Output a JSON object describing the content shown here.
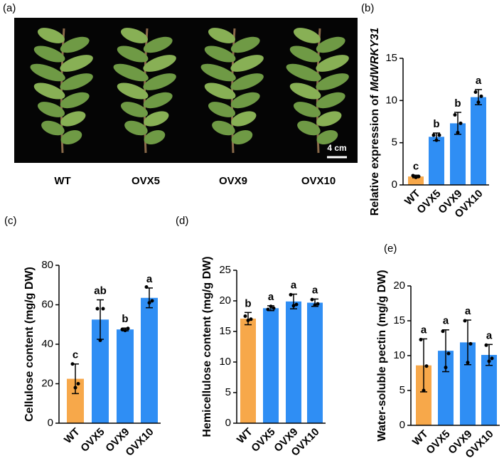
{
  "photo": {
    "panel": "(a)",
    "labels": [
      "WT",
      "OVX5",
      "OVX9",
      "OVX10"
    ],
    "scale_bar": "4 cm"
  },
  "chart_data": [
    {
      "type": "bar",
      "panel": "(b)",
      "ylabel": "Relative expression of",
      "ylabel_gene": "MdWRKY31",
      "categories": [
        "WT",
        "OVX5",
        "OVX9",
        "OVX10"
      ],
      "values": [
        1.0,
        5.7,
        7.3,
        10.4
      ],
      "errors": [
        0.15,
        0.45,
        1.3,
        0.9
      ],
      "points": [
        [
          1.1,
          0.9,
          1.0
        ],
        [
          5.9,
          5.3,
          5.9
        ],
        [
          8.3,
          6.2,
          7.3
        ],
        [
          11.0,
          9.8,
          10.5
        ]
      ],
      "letters": [
        "c",
        "b",
        "b",
        "a"
      ],
      "colors": [
        "#f7a84a",
        "#2f8ef4",
        "#2f8ef4",
        "#2f8ef4"
      ],
      "ylim": [
        0,
        15
      ],
      "yticks": [
        0,
        5,
        10,
        15
      ]
    },
    {
      "type": "bar",
      "panel": "(c)",
      "ylabel": "Cellulose content (mg/g DW)",
      "categories": [
        "WT",
        "OVX5",
        "OVX9",
        "OVX10"
      ],
      "values": [
        22.5,
        52.5,
        47.5,
        63.5
      ],
      "errors": [
        7.5,
        10,
        0.7,
        5
      ],
      "points": [
        [
          30,
          18,
          20
        ],
        [
          58,
          42,
          58
        ],
        [
          47.5,
          47,
          48
        ],
        [
          69,
          61,
          62
        ]
      ],
      "letters": [
        "c",
        "ab",
        "b",
        "a"
      ],
      "colors": [
        "#f7a84a",
        "#2f8ef4",
        "#2f8ef4",
        "#2f8ef4"
      ],
      "ylim": [
        0,
        80
      ],
      "yticks": [
        0,
        20,
        40,
        60,
        80
      ]
    },
    {
      "type": "bar",
      "panel": "(d)",
      "ylabel": "Hemicellulose content (mg/g DW)",
      "categories": [
        "WT",
        "OVX5",
        "OVX9",
        "OVX10"
      ],
      "values": [
        17.1,
        18.8,
        19.9,
        19.7
      ],
      "errors": [
        1.0,
        0.4,
        1.2,
        0.6
      ],
      "points": [
        [
          17.5,
          16.8,
          17.0
        ],
        [
          18.6,
          19.1,
          18.8
        ],
        [
          21.0,
          19.2,
          19.4
        ],
        [
          20.2,
          19.3,
          19.5
        ]
      ],
      "letters": [
        "b",
        "a",
        "a",
        "a"
      ],
      "colors": [
        "#f7a84a",
        "#2f8ef4",
        "#2f8ef4",
        "#2f8ef4"
      ],
      "ylim": [
        0,
        25
      ],
      "yticks": [
        0,
        5,
        10,
        15,
        20,
        25
      ]
    },
    {
      "type": "bar",
      "panel": "(e)",
      "ylabel": "Water-soluble pectin (mg/g DW)",
      "categories": [
        "WT",
        "OVX5",
        "OVX9",
        "OVX10"
      ],
      "values": [
        8.6,
        10.7,
        11.9,
        10.1
      ],
      "errors": [
        3.8,
        3.0,
        3.2,
        1.5
      ],
      "points": [
        [
          12.3,
          5.0,
          8.5
        ],
        [
          13.5,
          8.3,
          10.3
        ],
        [
          15.0,
          9.0,
          11.7
        ],
        [
          11.5,
          9.2,
          9.6
        ]
      ],
      "letters": [
        "a",
        "a",
        "a",
        "a"
      ],
      "colors": [
        "#f7a84a",
        "#2f8ef4",
        "#2f8ef4",
        "#2f8ef4"
      ],
      "ylim": [
        0,
        20
      ],
      "yticks": [
        0,
        5,
        10,
        15,
        20
      ]
    }
  ]
}
